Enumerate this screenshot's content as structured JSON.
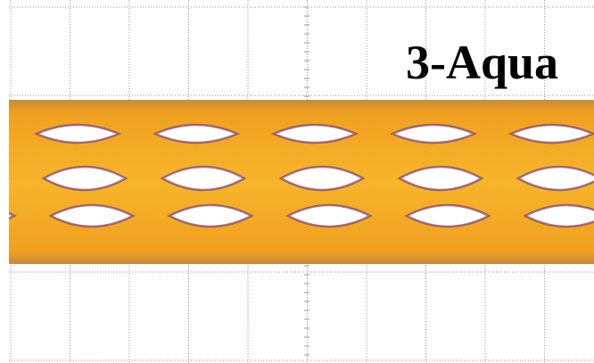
{
  "label": "3-Aqua"
}
